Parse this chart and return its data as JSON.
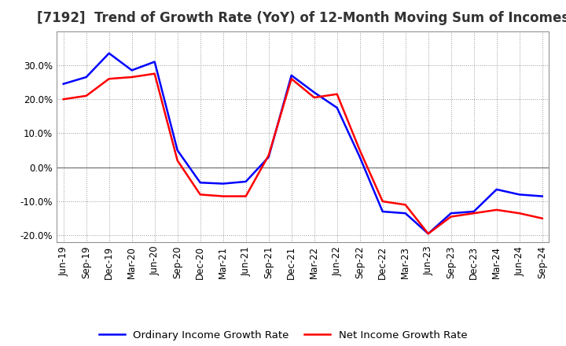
{
  "title": "[7192]  Trend of Growth Rate (YoY) of 12-Month Moving Sum of Incomes",
  "xlabels": [
    "Jun-19",
    "Sep-19",
    "Dec-19",
    "Mar-20",
    "Jun-20",
    "Sep-20",
    "Dec-20",
    "Mar-21",
    "Jun-21",
    "Sep-21",
    "Dec-21",
    "Mar-22",
    "Jun-22",
    "Sep-22",
    "Dec-22",
    "Mar-23",
    "Jun-23",
    "Sep-23",
    "Dec-23",
    "Mar-24",
    "Jun-24",
    "Sep-24"
  ],
  "ordinary_income": [
    24.5,
    26.5,
    33.5,
    28.5,
    31.0,
    5.0,
    -4.5,
    -4.8,
    -4.2,
    3.0,
    27.0,
    22.0,
    17.5,
    3.0,
    -13.0,
    -13.5,
    -19.5,
    -13.5,
    -13.0,
    -6.5,
    -8.0,
    -8.5
  ],
  "net_income": [
    20.0,
    21.0,
    26.0,
    26.5,
    27.5,
    2.0,
    -8.0,
    -8.5,
    -8.5,
    3.5,
    26.0,
    20.5,
    21.5,
    5.0,
    -10.0,
    -11.0,
    -19.5,
    -14.5,
    -13.5,
    -12.5,
    -13.5,
    -15.0
  ],
  "ordinary_color": "#0000FF",
  "net_color": "#FF0000",
  "ylim": [
    -22.0,
    40.0
  ],
  "yticks": [
    -20.0,
    -10.0,
    0.0,
    10.0,
    20.0,
    30.0
  ],
  "background_color": "#FFFFFF",
  "plot_bg_color": "#FFFFFF",
  "grid_color": "#999999",
  "legend_ordinary": "Ordinary Income Growth Rate",
  "legend_net": "Net Income Growth Rate",
  "title_fontsize": 12,
  "tick_fontsize": 8.5,
  "legend_fontsize": 9.5,
  "line_width": 1.8
}
